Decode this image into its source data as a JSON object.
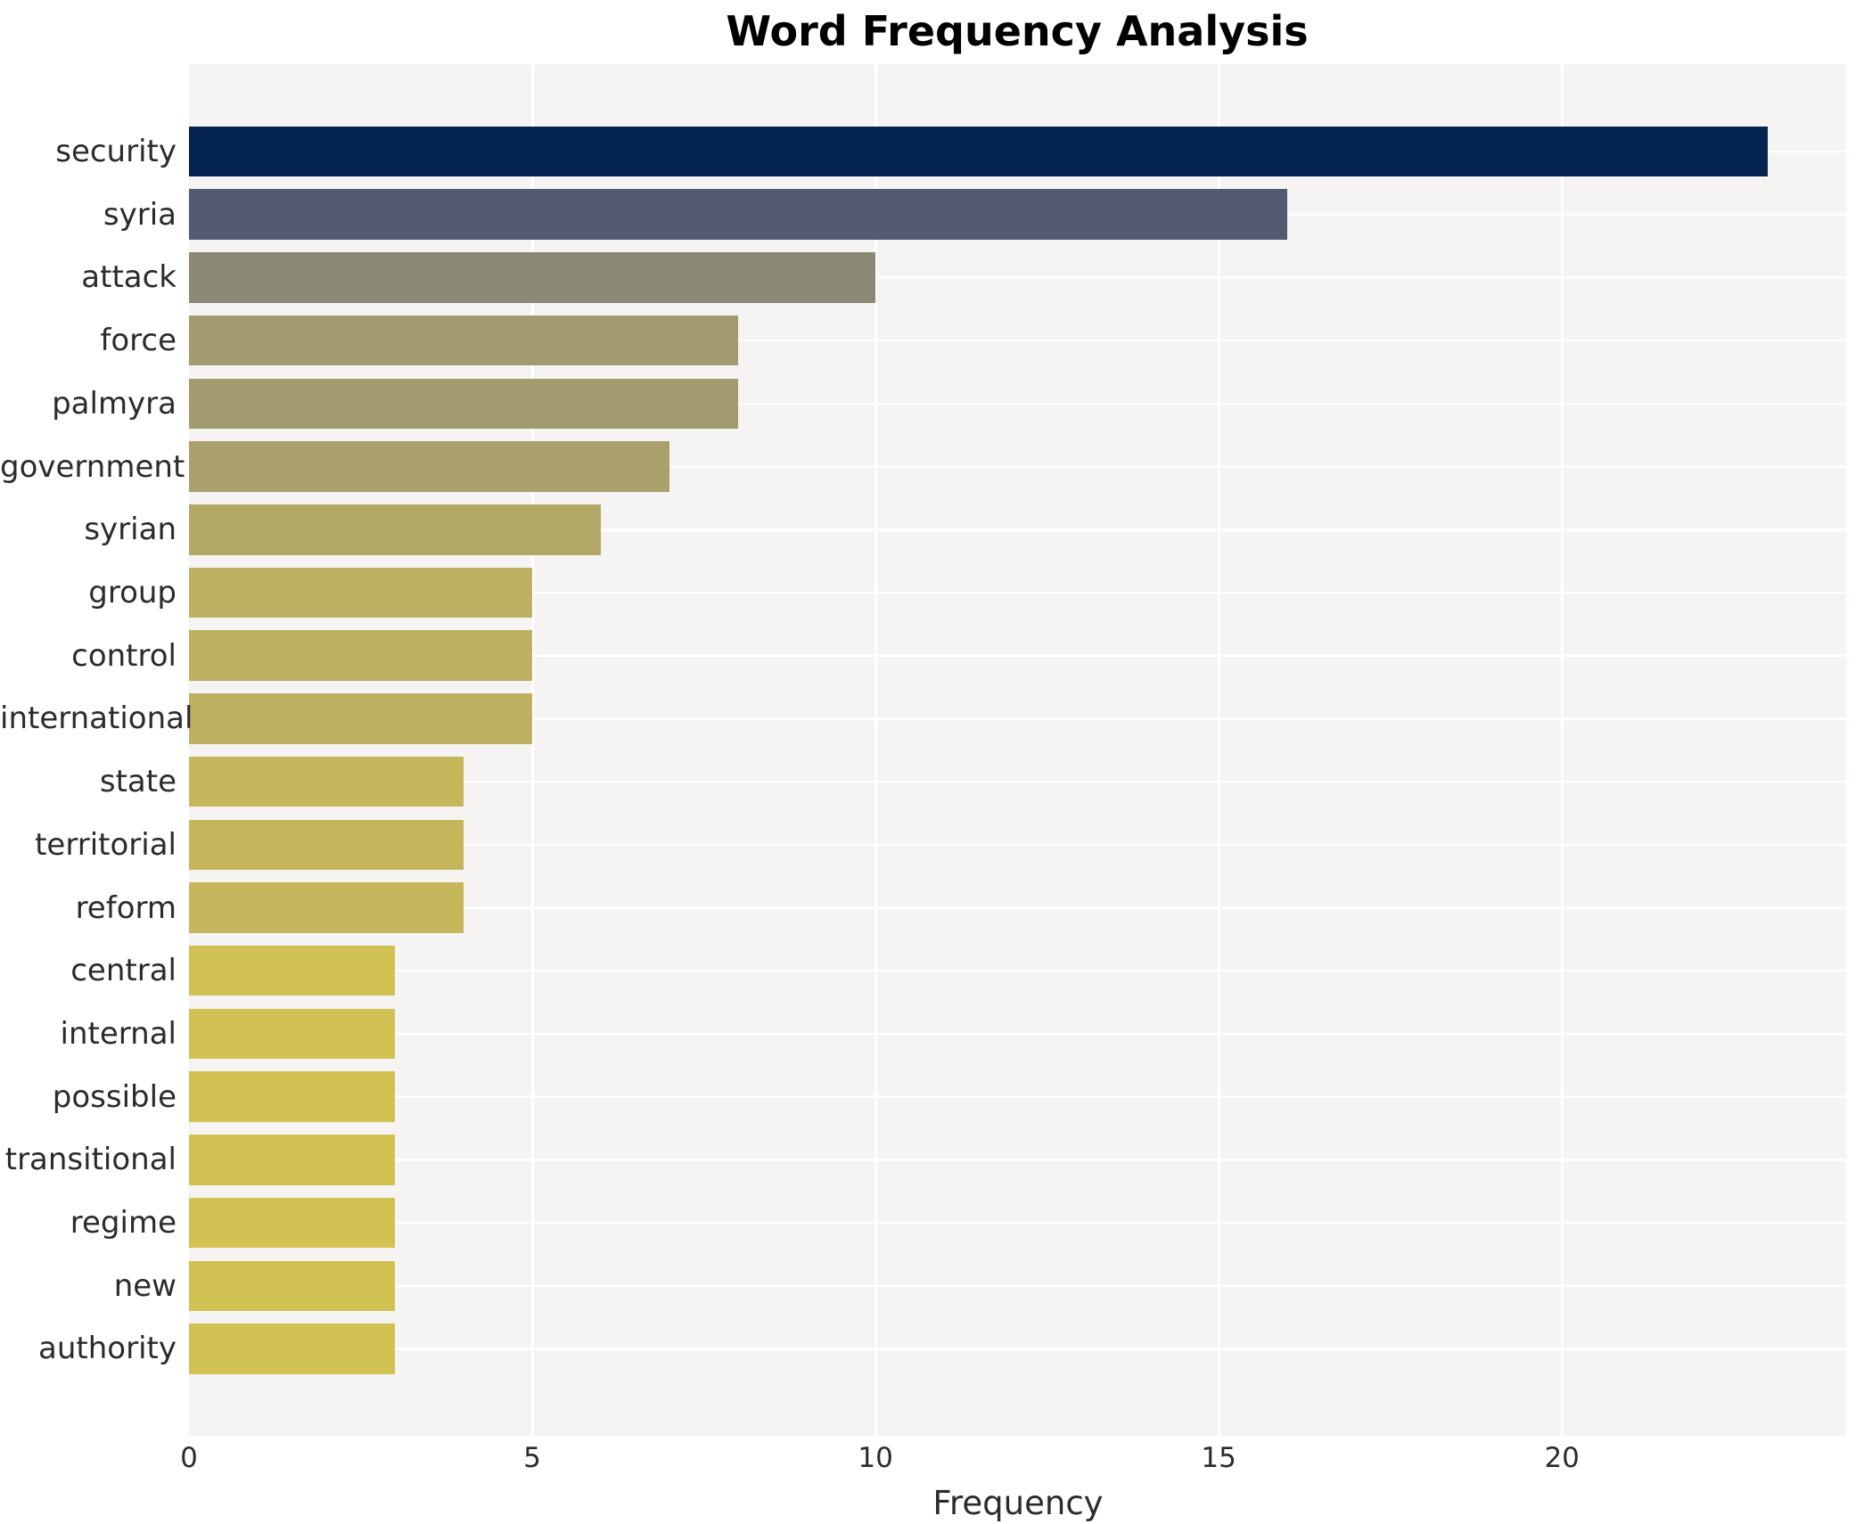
{
  "title": "Word Frequency Analysis",
  "chart_data": {
    "type": "bar",
    "orientation": "horizontal",
    "title": "Word Frequency Analysis",
    "xlabel": "Frequency",
    "ylabel": "",
    "categories": [
      "security",
      "syria",
      "attack",
      "force",
      "palmyra",
      "government",
      "syrian",
      "group",
      "control",
      "international",
      "state",
      "territorial",
      "reform",
      "central",
      "internal",
      "possible",
      "transitional",
      "regime",
      "new",
      "authority"
    ],
    "values": [
      23,
      16,
      10,
      8,
      8,
      7,
      6,
      5,
      5,
      5,
      4,
      4,
      4,
      3,
      3,
      3,
      3,
      3,
      3,
      3
    ],
    "bar_colors": [
      "#052550",
      "#535b73",
      "#8b8975",
      "#a29b6f",
      "#a29b6f",
      "#a9a06b",
      "#b2a866",
      "#bdb061",
      "#bdb061",
      "#bdb061",
      "#c5b65c",
      "#c5b65c",
      "#c5b65c",
      "#d2c153",
      "#d2c153",
      "#d2c153",
      "#d2c153",
      "#d2c153",
      "#d2c153",
      "#d2c153"
    ],
    "x_ticks": [
      0,
      5,
      10,
      15,
      20
    ],
    "xlim": [
      0,
      24.14
    ],
    "grid": true,
    "legend": "none",
    "plot_background": "#f5f4f2",
    "grid_color": "#ffffff",
    "text_color": "#2b2b2b",
    "title_color": "#000000"
  }
}
